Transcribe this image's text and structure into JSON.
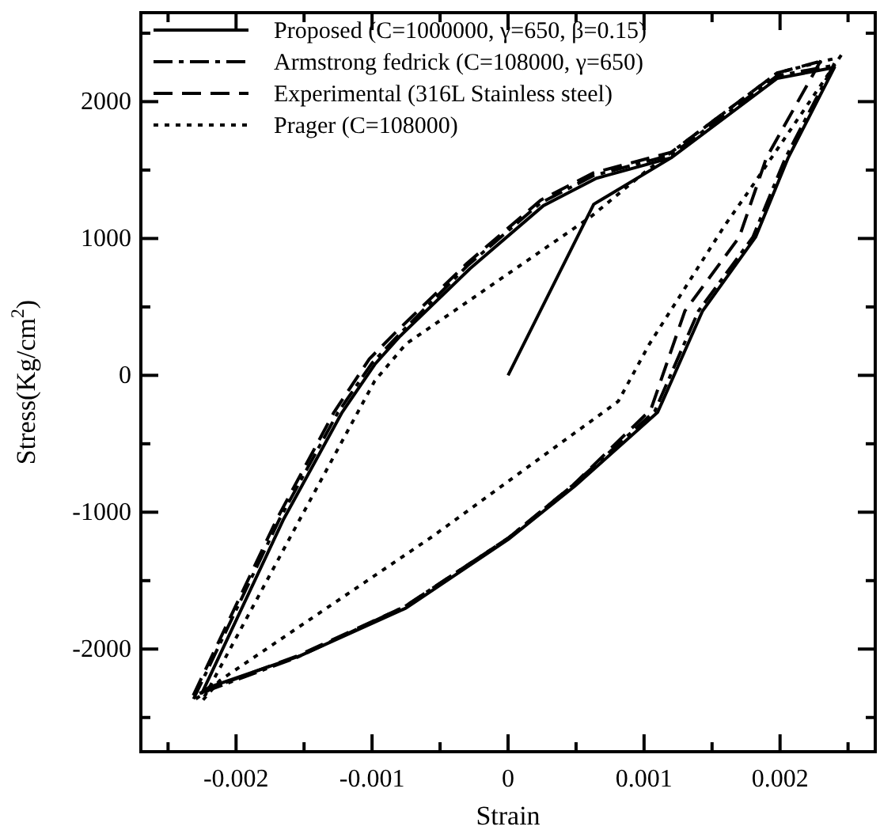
{
  "chart_data": {
    "type": "line",
    "xlabel": "Strain",
    "ylabel": "Stress(Kg/cm$^{2}$)",
    "xlim": [
      -0.0027,
      0.0027
    ],
    "ylim": [
      -2750,
      2650
    ],
    "xticks": [
      {
        "value": -0.0025,
        "label": null
      },
      -0.002,
      {
        "value": -0.0015,
        "label": null
      },
      -0.001,
      {
        "value": -0.0005,
        "label": null
      },
      0,
      {
        "value": 0.0005,
        "label": null
      },
      0.001,
      {
        "value": 0.0015,
        "label": null
      },
      0.002,
      {
        "value": 0.0025,
        "label": null
      }
    ],
    "yticks": [
      {
        "value": -2500,
        "label": null
      },
      -2000,
      {
        "value": -1500,
        "label": null
      },
      -1000,
      {
        "value": -500,
        "label": null
      },
      0,
      {
        "value": 500,
        "label": null
      },
      1000,
      {
        "value": 1500,
        "label": null
      },
      2000,
      {
        "value": 2500,
        "label": null
      }
    ],
    "legend": "top left",
    "grid": false,
    "marker": "none",
    "series": [
      {
        "name": "Proposed (C=1000000, γ=650, β=0.15)",
        "color": "#000000",
        "line_style": "solid",
        "x": [
          0,
          0.00063,
          0.0012,
          0.00198,
          0.0024,
          0.00206,
          0.00182,
          0.00143,
          0.0011,
          0.00049,
          0,
          -0.00075,
          -0.00153,
          -0.0022,
          -0.00225,
          -0.00165,
          -0.00122,
          -0.00098,
          -0.0008,
          -0.00028,
          0.00026,
          0.00065,
          0.0012,
          0.00198,
          0.0024
        ],
        "values": [
          0,
          1250,
          1590,
          2170,
          2250,
          1590,
          1010,
          470,
          -270,
          -810,
          -1200,
          -1700,
          -2050,
          -2280,
          -2320,
          -1050,
          -270,
          80,
          280,
          780,
          1240,
          1440,
          1590,
          2170,
          2250
        ]
      },
      {
        "name": "Armstrong fedrick (C=108000, γ=650)",
        "color": "#000000",
        "line_style": "dashdot",
        "x": [
          0.0024,
          0.00204,
          0.0018,
          0.0014,
          0.00108,
          0.00048,
          0,
          -0.00076,
          -0.00155,
          -0.0022,
          -0.00232,
          -0.00168,
          -0.00125,
          -0.001,
          -0.0008,
          -0.0003,
          0.00024,
          0.00063,
          0.0012,
          0.00198,
          0.00237
        ],
        "values": [
          2280,
          1590,
          1010,
          470,
          -260,
          -800,
          -1190,
          -1690,
          -2060,
          -2300,
          -2380,
          -1050,
          -270,
          90,
          300,
          800,
          1260,
          1460,
          1610,
          2190,
          2260
        ]
      },
      {
        "name": "Experimental (316L Stainless steel)",
        "color": "#000000",
        "line_style": "dashed",
        "x": [
          0.0023,
          0.0019,
          0.0017,
          0.0013,
          0.00105,
          0.00048,
          0,
          -0.00076,
          -0.00155,
          -0.0022,
          -0.00232,
          -0.0017,
          -0.00128,
          -0.00102,
          -0.00082,
          -0.0003,
          0.00024,
          0.00063,
          0.0012,
          0.00198,
          0.00228
        ],
        "values": [
          2300,
          1590,
          1010,
          470,
          -250,
          -800,
          -1190,
          -1690,
          -2050,
          -2290,
          -2350,
          -1050,
          -270,
          120,
          320,
          820,
          1280,
          1480,
          1630,
          2210,
          2290
        ]
      },
      {
        "name": "Prager (C=108000)",
        "color": "#000000",
        "line_style": "dotted",
        "x": [
          0.00245,
          0.00178,
          0.00159,
          0.00104,
          0.00081,
          -0.00056,
          -0.00212,
          -0.00225,
          -0.00153,
          -0.00098,
          -0.00075,
          -0.00028,
          0.00061,
          0.001,
          0.00198,
          0.00242
        ],
        "values": [
          2340,
          1360,
          1090,
          230,
          -190,
          -1180,
          -2230,
          -2380,
          -1050,
          -40,
          230,
          550,
          1160,
          1480,
          2210,
          2320
        ]
      }
    ]
  }
}
